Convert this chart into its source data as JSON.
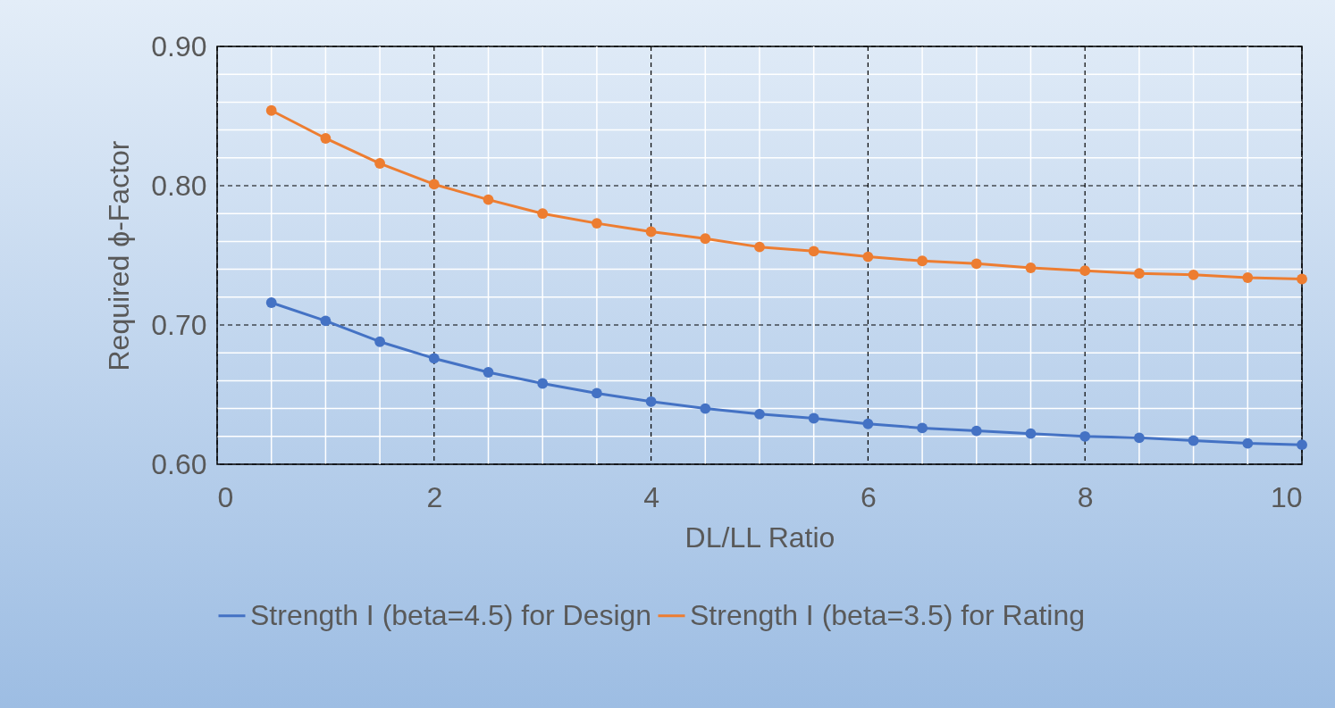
{
  "chart_data": {
    "type": "line",
    "xlabel": "DL/LL Ratio",
    "ylabel": "Required ϕ-Factor",
    "x": [
      0.5,
      1,
      1.5,
      2,
      2.5,
      3,
      3.5,
      4,
      4.5,
      5,
      5.5,
      6,
      6.5,
      7,
      7.5,
      8,
      8.5,
      9,
      9.5,
      10
    ],
    "series": [
      {
        "name": "Strength I (beta=4.5) for Design",
        "color": "#4472c4",
        "values": [
          0.716,
          0.703,
          0.688,
          0.676,
          0.666,
          0.658,
          0.651,
          0.645,
          0.64,
          0.636,
          0.633,
          0.629,
          0.626,
          0.624,
          0.622,
          0.62,
          0.619,
          0.617,
          0.615,
          0.614
        ]
      },
      {
        "name": "Strength I (beta=3.5) for Rating",
        "color": "#ed7d31",
        "values": [
          0.854,
          0.834,
          0.816,
          0.801,
          0.79,
          0.78,
          0.773,
          0.767,
          0.762,
          0.756,
          0.753,
          0.749,
          0.746,
          0.744,
          0.741,
          0.739,
          0.737,
          0.736,
          0.734,
          0.733
        ]
      }
    ],
    "xlim": [
      0,
      10
    ],
    "xticks": [
      0,
      2,
      4,
      6,
      8,
      10
    ],
    "ylim": [
      0.6,
      0.9
    ],
    "yticks": [
      {
        "value": 0.6,
        "label": "0.60"
      },
      {
        "value": 0.7,
        "label": "0.70"
      },
      {
        "value": 0.8,
        "label": "0.80"
      },
      {
        "value": 0.9,
        "label": "0.90"
      }
    ],
    "grid": true,
    "legend": "bottom",
    "marker": "circle",
    "line_style": "solid"
  }
}
